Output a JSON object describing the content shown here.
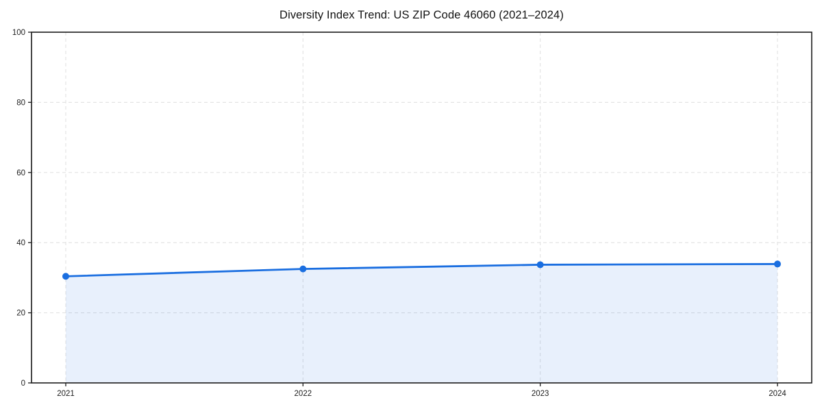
{
  "chart_data": {
    "type": "area",
    "title": "Diversity Index Trend: US ZIP Code 46060 (2021–2024)",
    "categories": [
      "2021",
      "2022",
      "2023",
      "2024"
    ],
    "series": [
      {
        "name": "Diversity Index",
        "values": [
          30.4,
          32.5,
          33.7,
          33.9
        ]
      }
    ],
    "xlabel": "",
    "ylabel": "",
    "ylim": [
      0,
      100
    ],
    "yticks": [
      0,
      20,
      40,
      60,
      80,
      100
    ],
    "grid": true,
    "grid_style": "dashed",
    "legend": false,
    "marker": "circle",
    "colors": {
      "line": "#1a6ee0",
      "marker": "#1a6ee0",
      "fill_rgba": "rgba(26,110,224,0.10)",
      "gridline": "#e2e2e2",
      "spine": "#1a1a1a",
      "tick_label": "#1c1c1c",
      "title": "#111111",
      "background": "#ffffff"
    }
  }
}
